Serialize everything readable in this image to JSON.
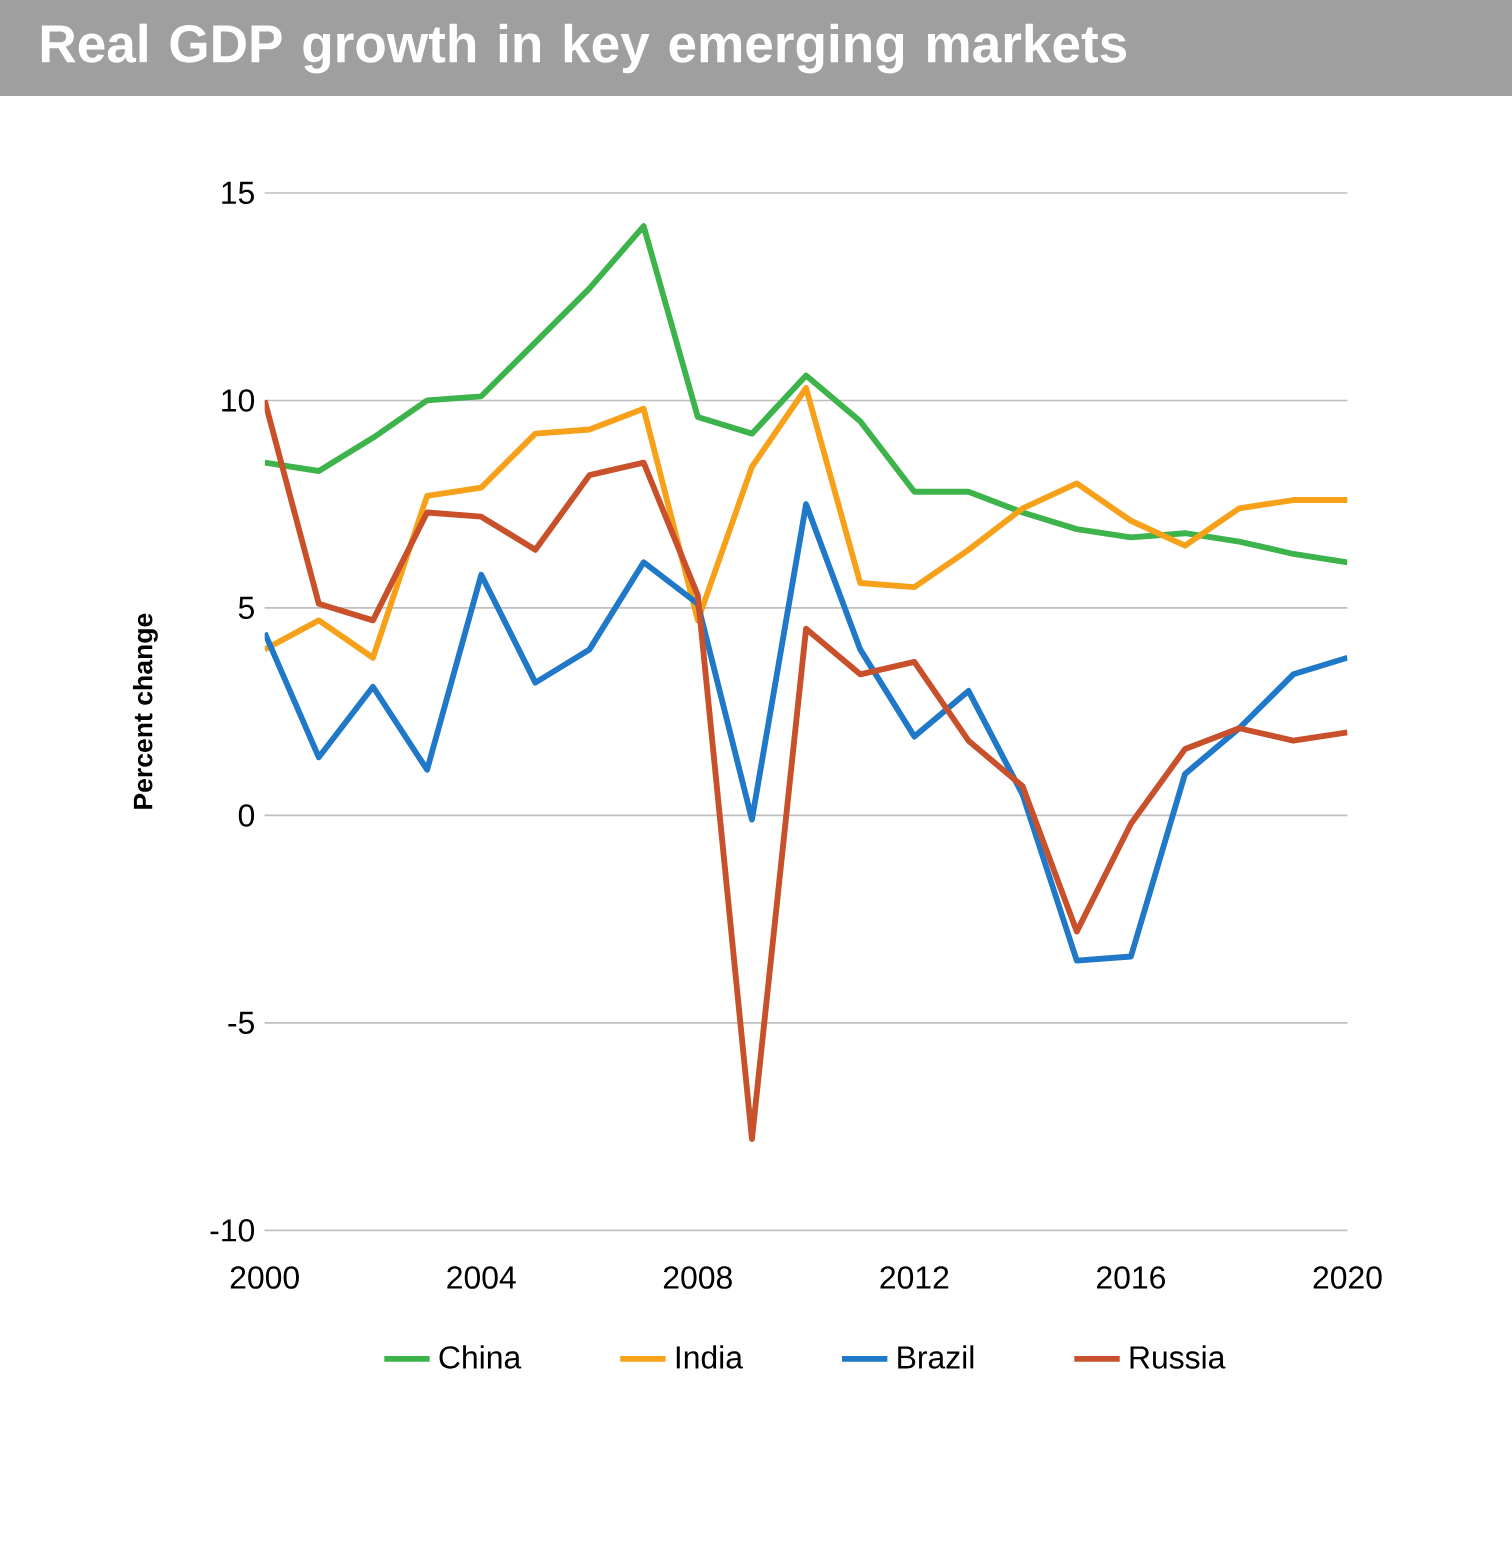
{
  "chart_data": {
    "type": "line",
    "title": "Real GDP growth in key emerging markets",
    "ylabel": "Percent change",
    "x": [
      2000,
      2001,
      2002,
      2003,
      2004,
      2005,
      2006,
      2007,
      2008,
      2009,
      2010,
      2011,
      2012,
      2013,
      2014,
      2015,
      2016,
      2017,
      2018,
      2019,
      2020
    ],
    "series": [
      {
        "name": "China",
        "color": "#3cb44b",
        "values": [
          8.5,
          8.3,
          9.1,
          10.0,
          10.1,
          11.4,
          12.7,
          14.2,
          9.6,
          9.2,
          10.6,
          9.5,
          7.8,
          7.8,
          7.3,
          6.9,
          6.7,
          6.8,
          6.6,
          6.3,
          6.1
        ]
      },
      {
        "name": "India",
        "color": "#f7a11a",
        "values": [
          4.0,
          4.7,
          3.8,
          7.7,
          7.9,
          9.2,
          9.3,
          9.8,
          4.7,
          8.4,
          10.3,
          5.6,
          5.5,
          6.4,
          7.4,
          8.0,
          7.1,
          6.5,
          7.4,
          7.6,
          7.6
        ]
      },
      {
        "name": "Brazil",
        "color": "#1f78c8",
        "values": [
          4.4,
          1.4,
          3.1,
          1.1,
          5.8,
          3.2,
          4.0,
          6.1,
          5.1,
          -0.1,
          7.5,
          4.0,
          1.9,
          3.0,
          0.5,
          -3.5,
          -3.4,
          1.0,
          2.1,
          3.4,
          3.8
        ]
      },
      {
        "name": "Russia",
        "color": "#c8502a",
        "values": [
          10.0,
          5.1,
          4.7,
          7.3,
          7.2,
          6.4,
          8.2,
          8.5,
          5.3,
          -7.8,
          4.5,
          3.4,
          3.7,
          1.8,
          0.7,
          -2.8,
          -0.2,
          1.6,
          2.1,
          1.8,
          2.0
        ]
      }
    ],
    "xlim": [
      2000,
      2020
    ],
    "xticks": [
      2000,
      2004,
      2008,
      2012,
      2016,
      2020
    ],
    "ylim": [
      -10,
      15
    ],
    "yticks": [
      -10,
      -5,
      0,
      5,
      10,
      15
    ],
    "grid": "y",
    "legend": "bottom",
    "marker": "none",
    "line_style": "solid"
  }
}
